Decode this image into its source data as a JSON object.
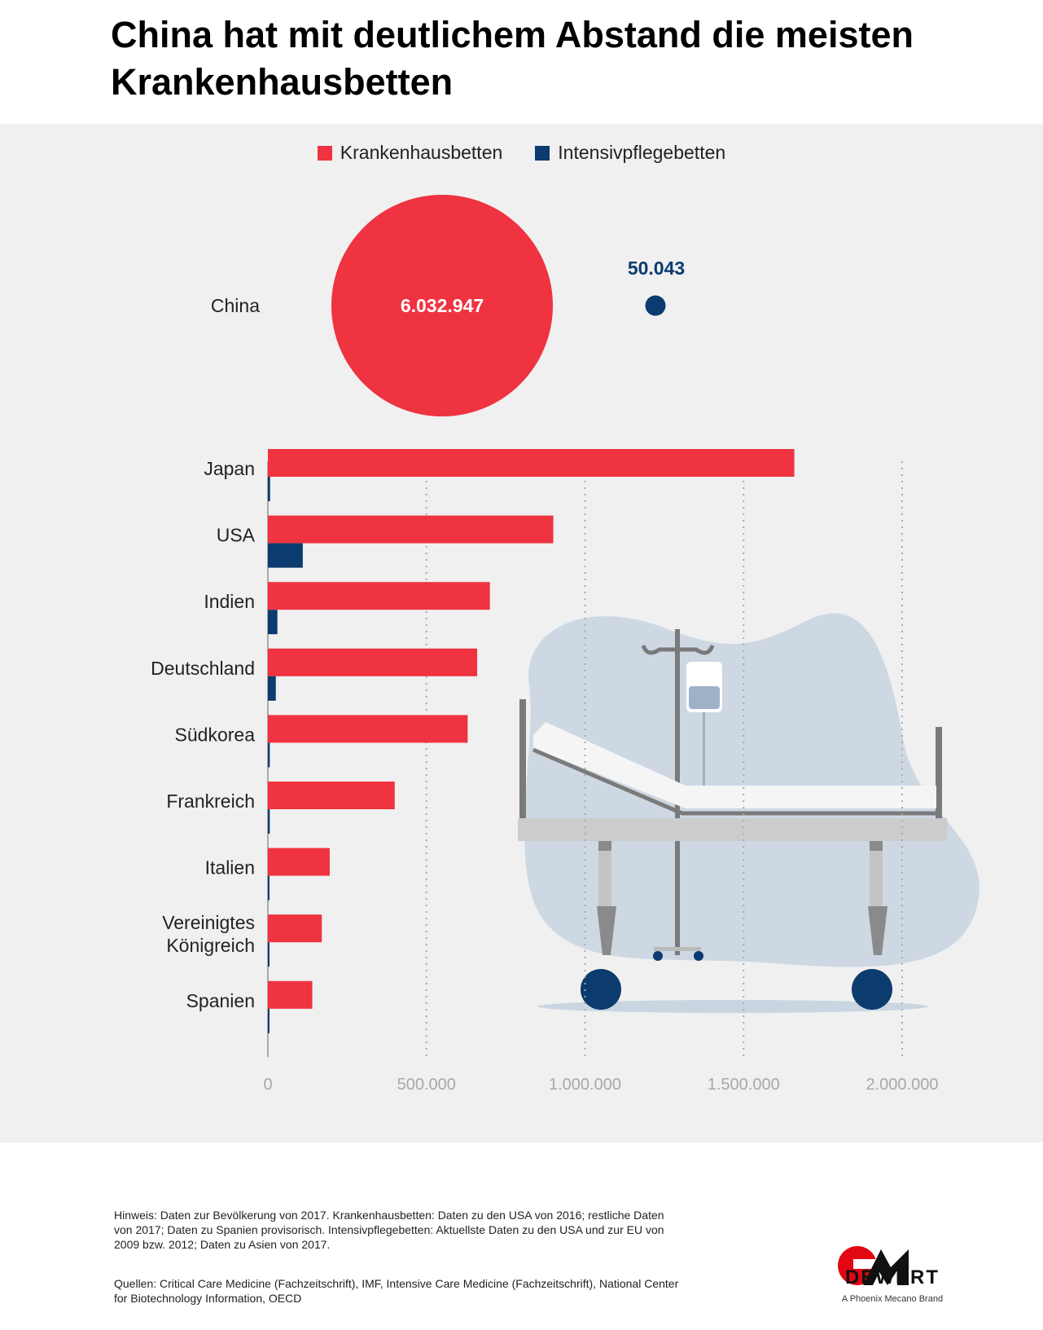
{
  "title": "China hat mit deutlichem Abstand die meisten Krankenhausbetten",
  "colors": {
    "red": "#ef3340",
    "navy": "#0b3b6f",
    "panel": "#f0f0f0"
  },
  "legend": {
    "beds_label": "Krankenhausbetten",
    "icu_label": "Intensivpflegebetten"
  },
  "china": {
    "label": "China",
    "beds": 6032947,
    "beds_label": "6.032.947",
    "icu": 50043,
    "icu_label": "50.043"
  },
  "chart_data": {
    "type": "bar",
    "orientation": "horizontal",
    "categories": [
      "Japan",
      "USA",
      "Indien",
      "Deutschland",
      "Südkorea",
      "Frankreich",
      "Italien",
      "Vereinigtes Königreich",
      "Spanien"
    ],
    "series": [
      {
        "name": "Krankenhausbetten",
        "values": [
          1660000,
          900000,
          700000,
          660000,
          630000,
          400000,
          195000,
          170000,
          140000
        ]
      },
      {
        "name": "Intensivpflegebetten",
        "values": [
          7000,
          110000,
          30000,
          25000,
          6000,
          6000,
          5000,
          3000,
          3500
        ]
      }
    ],
    "xlim": [
      0,
      2100000
    ],
    "xticks": [
      0,
      500000,
      1000000,
      1500000,
      2000000
    ],
    "xtick_labels": [
      "0",
      "500.000",
      "1.000.000",
      "1.500.000",
      "2.000.000"
    ],
    "grid": "vertical dotted",
    "legend_position": "top-center"
  },
  "footnote": "Hinweis: Daten zur Bevölkerung von 2017. Krankenhausbetten: Daten zu den USA von 2016; restliche Daten von 2017; Daten zu Spanien provisorisch. Intensivpflegebetten: Aktuellste Daten zu den USA und zur EU von 2009 bzw. 2012; Daten zu Asien von 2017.",
  "sources": "Quellen: Critical Care Medicine (Fachzeitschrift), IMF, Intensive Care Medicine (Fachzeitschrift), National Center for Biotechnology Information, OECD",
  "logo": {
    "name": "DEWERT",
    "tagline": "A Phoenix Mecano Brand"
  }
}
